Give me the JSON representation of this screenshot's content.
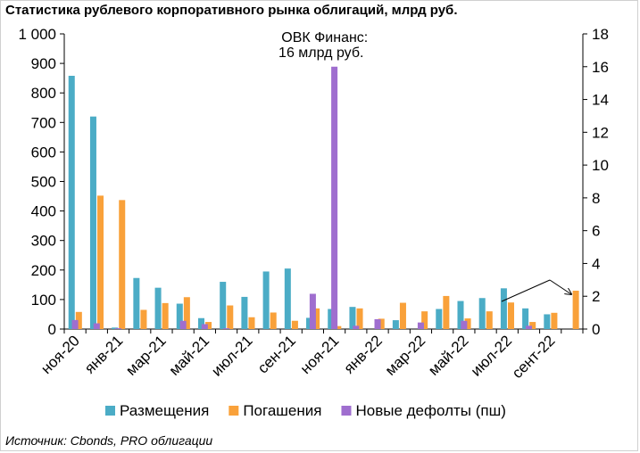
{
  "chart_data": {
    "type": "bar",
    "title": "Статистика рублевого корпоративного рынка облигаций, млрд руб.",
    "source": "Источник: Cbonds, PRO облигации",
    "annotation": [
      "ОВК Финанс:",
      "16 млрд руб."
    ],
    "months": 24,
    "x_tick_labels": [
      {
        "index": 0,
        "label": "ноя-20"
      },
      {
        "index": 2,
        "label": "янв-21"
      },
      {
        "index": 4,
        "label": "мар-21"
      },
      {
        "index": 6,
        "label": "май-21"
      },
      {
        "index": 8,
        "label": "июл-21"
      },
      {
        "index": 10,
        "label": "сен-21"
      },
      {
        "index": 12,
        "label": "ноя-21"
      },
      {
        "index": 14,
        "label": "янв-22"
      },
      {
        "index": 16,
        "label": "мар-22"
      },
      {
        "index": 18,
        "label": "май-22"
      },
      {
        "index": 20,
        "label": "июл-22"
      },
      {
        "index": 22,
        "label": "сент-22"
      }
    ],
    "y_left": {
      "min": 0,
      "max": 1000,
      "step": 100,
      "tick_labels": [
        "0",
        "100",
        "200",
        "300",
        "400",
        "500",
        "600",
        "700",
        "800",
        "900",
        "1 000"
      ]
    },
    "y_right": {
      "min": 0,
      "max": 18,
      "step": 2,
      "tick_labels": [
        "0",
        "2",
        "4",
        "6",
        "8",
        "10",
        "12",
        "14",
        "16",
        "18"
      ]
    },
    "series": [
      {
        "name": "Размещения",
        "color": "#4bacc6",
        "axis": "left",
        "values": [
          858,
          720,
          5,
          173,
          140,
          86,
          37,
          160,
          109,
          195,
          205,
          38,
          68,
          75,
          0,
          30,
          0,
          68,
          95,
          105,
          138,
          70,
          50,
          0
        ]
      },
      {
        "name": "Погашения",
        "color": "#f9a13a",
        "axis": "left",
        "values": [
          58,
          452,
          437,
          65,
          88,
          108,
          24,
          80,
          40,
          56,
          28,
          70,
          10,
          70,
          35,
          89,
          60,
          112,
          36,
          60,
          90,
          24,
          55,
          130
        ]
      },
      {
        "name": "Новые дефолты (пш)",
        "color": "#9f6ecf",
        "axis": "right",
        "values": [
          0.55,
          0.35,
          0.05,
          0,
          0,
          0.5,
          0.3,
          0.05,
          0,
          0,
          0,
          2.15,
          16.0,
          0.2,
          0.6,
          0,
          0.4,
          0,
          0.5,
          0,
          0,
          0.2,
          0,
          0
        ]
      }
    ]
  }
}
